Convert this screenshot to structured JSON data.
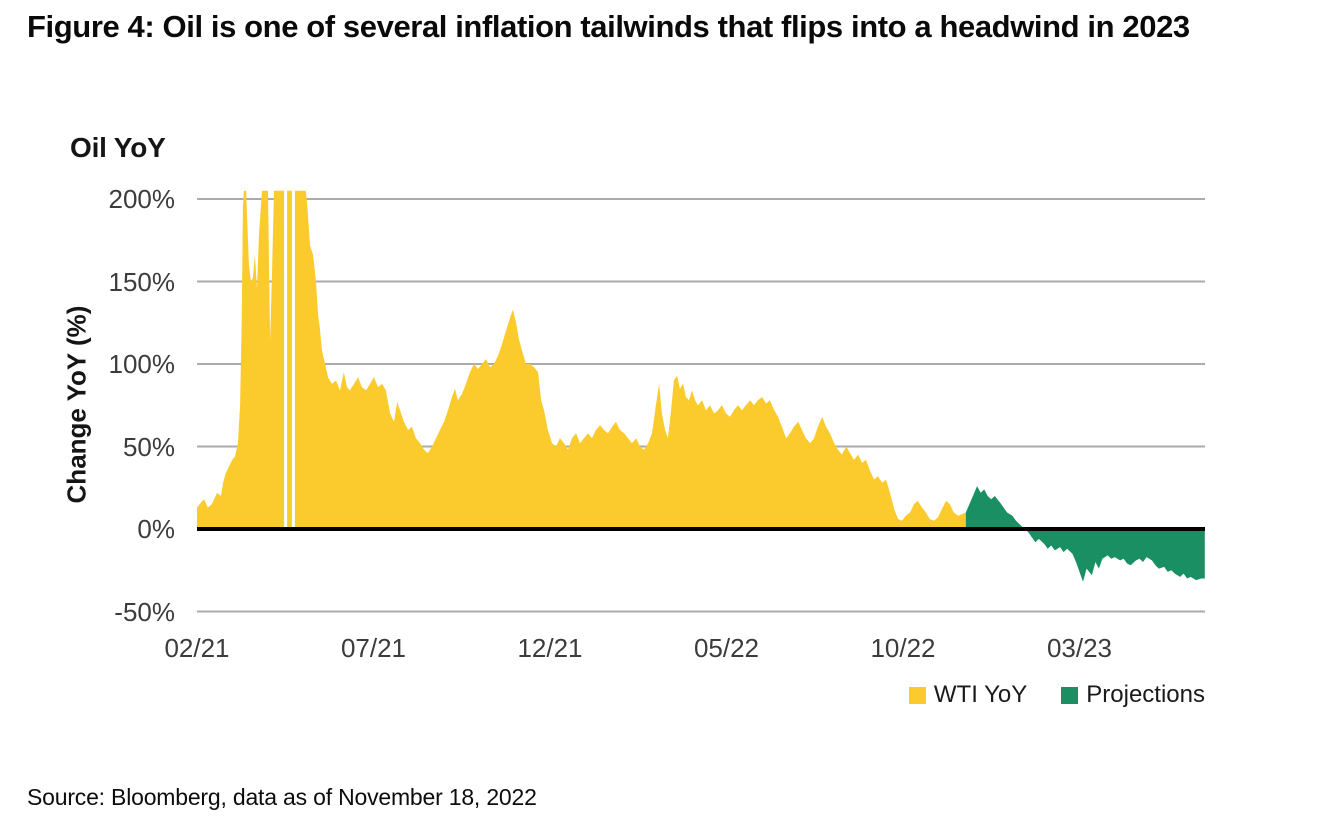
{
  "figure": {
    "title": "Figure 4: Oil is one of several inflation tailwinds that flips into a headwind in 2023",
    "source": "Source: Bloomberg, data as of November 18, 2022"
  },
  "legend": {
    "items": [
      {
        "label": "WTI YoY",
        "color": "#FBCB2D"
      },
      {
        "label": "Projections",
        "color": "#1A8F63"
      }
    ]
  },
  "chart_data": {
    "type": "area",
    "title": "Oil YoY",
    "ylabel": "Change YoY (%)",
    "x_unit_note": "x = months since Feb 2021 (0 = 02/21)",
    "xlim": [
      0,
      28.55
    ],
    "ylim": [
      -50,
      200
    ],
    "grid": true,
    "grid_color": "#a9abad",
    "zero_line_color": "#000000",
    "clip_note": "spike values above ~205% are clipped at the plot top",
    "data_gaps_m": [
      2.51,
      2.73
    ],
    "y_ticks": [
      {
        "v": 200,
        "label": "200%"
      },
      {
        "v": 150,
        "label": "150%"
      },
      {
        "v": 100,
        "label": "100%"
      },
      {
        "v": 50,
        "label": "50%"
      },
      {
        "v": 0,
        "label": "0%"
      },
      {
        "v": -50,
        "label": "-50%"
      }
    ],
    "x_ticks": [
      {
        "m": 0,
        "label": "02/21"
      },
      {
        "m": 5,
        "label": "07/21"
      },
      {
        "m": 10,
        "label": "12/21"
      },
      {
        "m": 15,
        "label": "05/22"
      },
      {
        "m": 20,
        "label": "10/22"
      },
      {
        "m": 25,
        "label": "03/23"
      }
    ],
    "legend_position": "bottom-right",
    "series": [
      {
        "name": "WTI YoY",
        "color": "#FBCB2D",
        "points": [
          [
            0,
            13
          ],
          [
            0.11,
            16
          ],
          [
            0.2,
            18
          ],
          [
            0.31,
            13
          ],
          [
            0.42,
            15
          ],
          [
            0.57,
            22
          ],
          [
            0.68,
            20
          ],
          [
            0.74,
            28
          ],
          [
            0.82,
            34
          ],
          [
            0.91,
            38
          ],
          [
            1.0,
            42
          ],
          [
            1.08,
            44
          ],
          [
            1.16,
            52
          ],
          [
            1.22,
            75
          ],
          [
            1.27,
            130
          ],
          [
            1.3,
            195
          ],
          [
            1.33,
            205
          ],
          [
            1.39,
            205
          ],
          [
            1.47,
            160
          ],
          [
            1.53,
            150
          ],
          [
            1.58,
            152
          ],
          [
            1.64,
            166
          ],
          [
            1.7,
            146
          ],
          [
            1.76,
            180
          ],
          [
            1.84,
            205
          ],
          [
            2.01,
            205
          ],
          [
            2.07,
            114
          ],
          [
            2.12,
            150
          ],
          [
            2.18,
            205
          ],
          [
            2.44,
            205
          ],
          [
            2.58,
            205
          ],
          [
            2.83,
            205
          ],
          [
            3.08,
            205
          ],
          [
            3.12,
            198
          ],
          [
            3.2,
            172
          ],
          [
            3.29,
            166
          ],
          [
            3.37,
            150
          ],
          [
            3.43,
            130
          ],
          [
            3.48,
            122
          ],
          [
            3.54,
            108
          ],
          [
            3.63,
            100
          ],
          [
            3.71,
            92
          ],
          [
            3.82,
            88
          ],
          [
            3.94,
            90
          ],
          [
            4.05,
            84
          ],
          [
            4.16,
            95
          ],
          [
            4.25,
            86
          ],
          [
            4.33,
            84
          ],
          [
            4.45,
            88
          ],
          [
            4.56,
            92
          ],
          [
            4.67,
            86
          ],
          [
            4.79,
            84
          ],
          [
            4.9,
            88
          ],
          [
            5.01,
            92
          ],
          [
            5.13,
            86
          ],
          [
            5.24,
            88
          ],
          [
            5.35,
            84
          ],
          [
            5.47,
            70
          ],
          [
            5.58,
            65
          ],
          [
            5.67,
            77
          ],
          [
            5.75,
            72
          ],
          [
            5.86,
            65
          ],
          [
            5.98,
            60
          ],
          [
            6.09,
            62
          ],
          [
            6.2,
            55
          ],
          [
            6.32,
            52
          ],
          [
            6.43,
            48
          ],
          [
            6.54,
            46
          ],
          [
            6.66,
            50
          ],
          [
            6.77,
            55
          ],
          [
            6.88,
            60
          ],
          [
            7.0,
            65
          ],
          [
            7.11,
            72
          ],
          [
            7.22,
            80
          ],
          [
            7.31,
            85
          ],
          [
            7.39,
            78
          ],
          [
            7.51,
            82
          ],
          [
            7.62,
            88
          ],
          [
            7.73,
            95
          ],
          [
            7.85,
            100
          ],
          [
            7.96,
            97
          ],
          [
            8.07,
            100
          ],
          [
            8.19,
            103
          ],
          [
            8.3,
            98
          ],
          [
            8.41,
            100
          ],
          [
            8.53,
            105
          ],
          [
            8.64,
            112
          ],
          [
            8.75,
            120
          ],
          [
            8.87,
            128
          ],
          [
            8.95,
            133
          ],
          [
            9.04,
            125
          ],
          [
            9.12,
            115
          ],
          [
            9.21,
            108
          ],
          [
            9.32,
            100
          ],
          [
            9.43,
            100
          ],
          [
            9.55,
            98
          ],
          [
            9.66,
            95
          ],
          [
            9.75,
            78
          ],
          [
            9.83,
            72
          ],
          [
            9.94,
            60
          ],
          [
            10.06,
            52
          ],
          [
            10.17,
            50
          ],
          [
            10.28,
            55
          ],
          [
            10.4,
            52
          ],
          [
            10.51,
            48
          ],
          [
            10.62,
            55
          ],
          [
            10.74,
            58
          ],
          [
            10.85,
            52
          ],
          [
            10.96,
            55
          ],
          [
            11.08,
            58
          ],
          [
            11.19,
            55
          ],
          [
            11.3,
            60
          ],
          [
            11.42,
            63
          ],
          [
            11.53,
            60
          ],
          [
            11.64,
            58
          ],
          [
            11.76,
            62
          ],
          [
            11.87,
            65
          ],
          [
            11.98,
            60
          ],
          [
            12.1,
            58
          ],
          [
            12.21,
            55
          ],
          [
            12.32,
            52
          ],
          [
            12.44,
            55
          ],
          [
            12.55,
            50
          ],
          [
            12.66,
            48
          ],
          [
            12.78,
            52
          ],
          [
            12.89,
            58
          ],
          [
            13.0,
            75
          ],
          [
            13.09,
            88
          ],
          [
            13.17,
            70
          ],
          [
            13.26,
            60
          ],
          [
            13.34,
            55
          ],
          [
            13.43,
            72
          ],
          [
            13.51,
            90
          ],
          [
            13.6,
            93
          ],
          [
            13.68,
            85
          ],
          [
            13.77,
            88
          ],
          [
            13.85,
            80
          ],
          [
            13.94,
            78
          ],
          [
            14.02,
            84
          ],
          [
            14.11,
            78
          ],
          [
            14.19,
            75
          ],
          [
            14.31,
            78
          ],
          [
            14.42,
            72
          ],
          [
            14.53,
            75
          ],
          [
            14.65,
            70
          ],
          [
            14.76,
            72
          ],
          [
            14.87,
            75
          ],
          [
            14.99,
            70
          ],
          [
            15.1,
            68
          ],
          [
            15.21,
            72
          ],
          [
            15.33,
            75
          ],
          [
            15.44,
            72
          ],
          [
            15.55,
            75
          ],
          [
            15.67,
            78
          ],
          [
            15.78,
            75
          ],
          [
            15.89,
            78
          ],
          [
            16.01,
            80
          ],
          [
            16.12,
            76
          ],
          [
            16.23,
            78
          ],
          [
            16.35,
            72
          ],
          [
            16.46,
            68
          ],
          [
            16.57,
            62
          ],
          [
            16.69,
            55
          ],
          [
            16.8,
            58
          ],
          [
            16.91,
            62
          ],
          [
            17.03,
            65
          ],
          [
            17.14,
            60
          ],
          [
            17.25,
            55
          ],
          [
            17.37,
            52
          ],
          [
            17.48,
            55
          ],
          [
            17.59,
            62
          ],
          [
            17.71,
            68
          ],
          [
            17.82,
            62
          ],
          [
            17.93,
            58
          ],
          [
            18.05,
            52
          ],
          [
            18.16,
            48
          ],
          [
            18.27,
            45
          ],
          [
            18.39,
            50
          ],
          [
            18.5,
            46
          ],
          [
            18.61,
            42
          ],
          [
            18.73,
            45
          ],
          [
            18.84,
            40
          ],
          [
            18.95,
            42
          ],
          [
            19.07,
            35
          ],
          [
            19.18,
            30
          ],
          [
            19.29,
            32
          ],
          [
            19.41,
            28
          ],
          [
            19.52,
            30
          ],
          [
            19.63,
            22
          ],
          [
            19.75,
            12
          ],
          [
            19.86,
            6
          ],
          [
            19.97,
            5
          ],
          [
            20.08,
            8
          ],
          [
            20.2,
            10
          ],
          [
            20.31,
            15
          ],
          [
            20.42,
            17
          ],
          [
            20.54,
            13
          ],
          [
            20.65,
            10
          ],
          [
            20.76,
            6
          ],
          [
            20.88,
            5
          ],
          [
            20.99,
            7
          ],
          [
            21.1,
            12
          ],
          [
            21.22,
            17
          ],
          [
            21.33,
            15
          ],
          [
            21.44,
            10
          ],
          [
            21.56,
            8
          ],
          [
            21.67,
            9
          ],
          [
            21.78,
            10
          ]
        ]
      },
      {
        "name": "Projections",
        "color": "#1A8F63",
        "points": [
          [
            21.78,
            10
          ],
          [
            21.9,
            16
          ],
          [
            22.0,
            21
          ],
          [
            22.1,
            26
          ],
          [
            22.2,
            22
          ],
          [
            22.3,
            24
          ],
          [
            22.4,
            20
          ],
          [
            22.5,
            18
          ],
          [
            22.6,
            20
          ],
          [
            22.75,
            16
          ],
          [
            22.85,
            13
          ],
          [
            22.95,
            10
          ],
          [
            23.1,
            8
          ],
          [
            23.2,
            5
          ],
          [
            23.3,
            3
          ],
          [
            23.4,
            1
          ],
          [
            23.55,
            -2
          ],
          [
            23.65,
            -5
          ],
          [
            23.75,
            -8
          ],
          [
            23.85,
            -6
          ],
          [
            24.0,
            -9
          ],
          [
            24.1,
            -12
          ],
          [
            24.2,
            -10
          ],
          [
            24.3,
            -13
          ],
          [
            24.45,
            -11
          ],
          [
            24.55,
            -14
          ],
          [
            24.65,
            -12
          ],
          [
            24.8,
            -15
          ],
          [
            24.9,
            -20
          ],
          [
            25.0,
            -26
          ],
          [
            25.1,
            -32
          ],
          [
            25.2,
            -24
          ],
          [
            25.35,
            -28
          ],
          [
            25.45,
            -20
          ],
          [
            25.55,
            -24
          ],
          [
            25.65,
            -18
          ],
          [
            25.8,
            -16
          ],
          [
            25.9,
            -18
          ],
          [
            26.0,
            -17
          ],
          [
            26.15,
            -19
          ],
          [
            26.25,
            -18
          ],
          [
            26.35,
            -21
          ],
          [
            26.45,
            -22
          ],
          [
            26.6,
            -19
          ],
          [
            26.7,
            -18
          ],
          [
            26.8,
            -20
          ],
          [
            26.9,
            -17
          ],
          [
            27.05,
            -19
          ],
          [
            27.15,
            -22
          ],
          [
            27.25,
            -24
          ],
          [
            27.4,
            -23
          ],
          [
            27.5,
            -26
          ],
          [
            27.6,
            -25
          ],
          [
            27.7,
            -27
          ],
          [
            27.85,
            -29
          ],
          [
            27.95,
            -27
          ],
          [
            28.05,
            -30
          ],
          [
            28.15,
            -29
          ],
          [
            28.3,
            -31
          ],
          [
            28.45,
            -30
          ],
          [
            28.55,
            -30
          ]
        ]
      }
    ]
  }
}
